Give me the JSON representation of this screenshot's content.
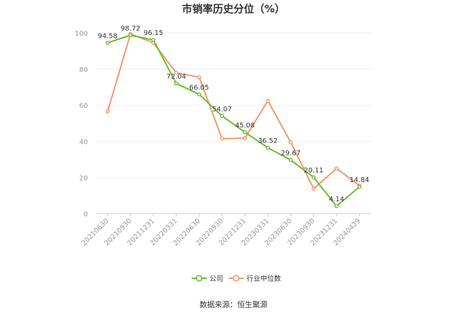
{
  "chart_data": {
    "type": "line",
    "title": "市销率历史分位（%）",
    "categories": [
      "20210630",
      "20210930",
      "20211231",
      "20220331",
      "20220630",
      "20220930",
      "20221231",
      "20230331",
      "20230630",
      "20230930",
      "20231231",
      "20240429"
    ],
    "ylim": [
      0,
      100
    ],
    "yticks": [
      0,
      20,
      40,
      60,
      80,
      100
    ],
    "grid": true,
    "legend_position": "bottom-center",
    "series": [
      {
        "name": "公司",
        "color": "#66bb33",
        "values": [
          94.58,
          98.72,
          96.15,
          72.04,
          66.05,
          54.07,
          45.08,
          36.52,
          29.67,
          20.11,
          4.14,
          14.84
        ],
        "labels": [
          "94.58",
          "98.72",
          "96.15",
          "72.04",
          "66.05",
          "54.07",
          "45.08",
          "36.52",
          "29.67",
          "20.11",
          "4.14",
          "14.84"
        ]
      },
      {
        "name": "行业中位数",
        "color": "#f4956a",
        "values": [
          56.5,
          99.5,
          94.5,
          78.0,
          75.5,
          41.5,
          41.8,
          62.5,
          39.5,
          13.8,
          25.0,
          15.5
        ]
      }
    ]
  },
  "source": "数据来源：恒生聚源"
}
